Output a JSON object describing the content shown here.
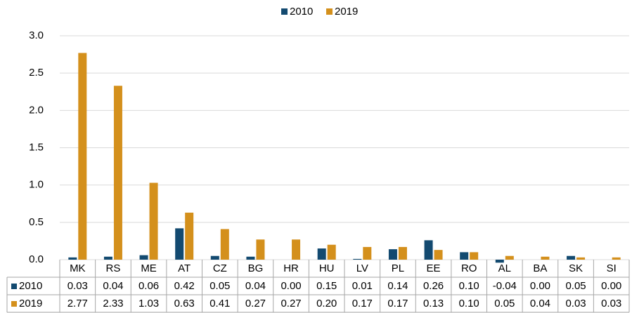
{
  "chart_data": {
    "type": "bar",
    "categories": [
      "MK",
      "RS",
      "ME",
      "AT",
      "CZ",
      "BG",
      "HR",
      "HU",
      "LV",
      "PL",
      "EE",
      "RO",
      "AL",
      "BA",
      "SK",
      "SI"
    ],
    "series": [
      {
        "name": "2010",
        "color": "#134a70",
        "values": [
          0.03,
          0.04,
          0.06,
          0.42,
          0.05,
          0.04,
          0,
          0.15,
          0.01,
          0.14,
          0.26,
          0.1,
          -0.04,
          0,
          0.05,
          0
        ],
        "value_labels": [
          "0.03",
          "0.04",
          "0.06",
          "0.42",
          "0.05",
          "0.04",
          "0.00",
          "0.15",
          "0.01",
          "0.14",
          "0.26",
          "0.10",
          "-0.04",
          "0.00",
          "0.05",
          "0.00"
        ]
      },
      {
        "name": "2019",
        "color": "#d4901c",
        "values": [
          2.77,
          2.33,
          1.03,
          0.63,
          0.41,
          0.27,
          0.27,
          0.2,
          0.17,
          0.17,
          0.13,
          0.1,
          0.05,
          0.04,
          0.03,
          0.03
        ],
        "value_labels": [
          "2.77",
          "2.33",
          "1.03",
          "0.63",
          "0.41",
          "0.27",
          "0.27",
          "0.20",
          "0.17",
          "0.17",
          "0.13",
          "0.10",
          "0.05",
          "0.04",
          "0.03",
          "0.03"
        ]
      }
    ],
    "ylim": [
      0,
      3
    ],
    "yticks": [
      {
        "value": 0,
        "label": "0.0"
      },
      0.5,
      {
        "value": 1,
        "label": "1.0"
      },
      1.5,
      {
        "value": 2,
        "label": "2.0"
      },
      2.5,
      {
        "value": 3,
        "label": "3.0"
      }
    ],
    "grid": true,
    "legend": "top"
  }
}
